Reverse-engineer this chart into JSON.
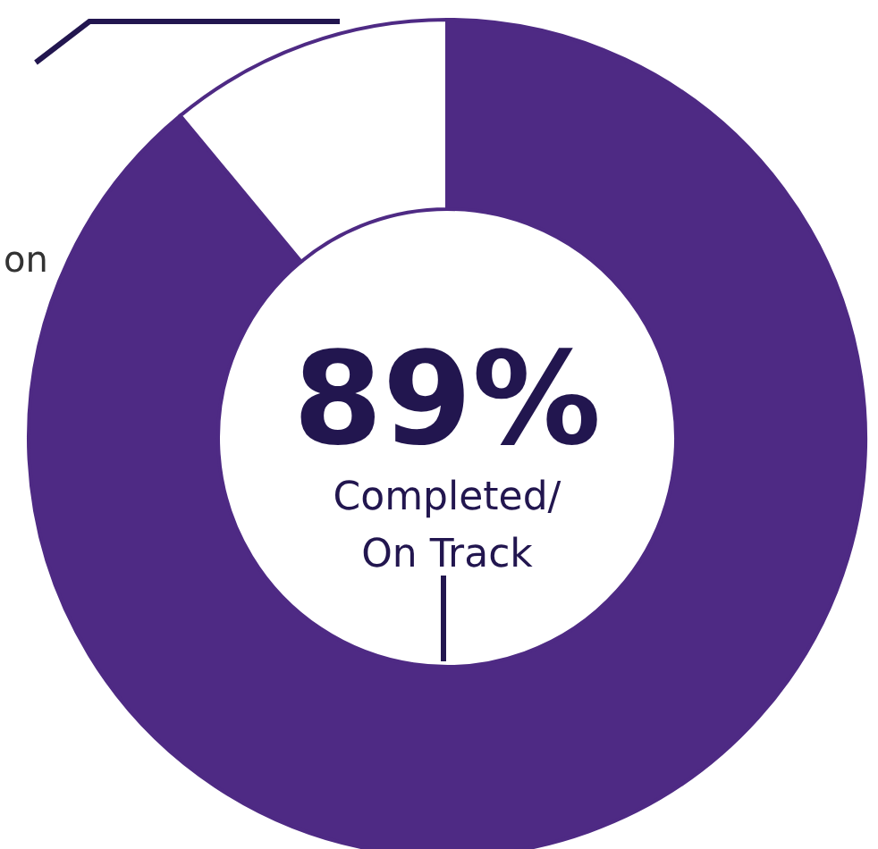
{
  "chart_data": {
    "type": "donut",
    "categories": [
      "Completed/\nOn Track",
      null
    ],
    "values": [
      89,
      11
    ],
    "colors": [
      "#4e2a84",
      "#ffffff"
    ],
    "value_labels": [
      "89%",
      null
    ],
    "annotations": [
      "on"
    ]
  }
}
